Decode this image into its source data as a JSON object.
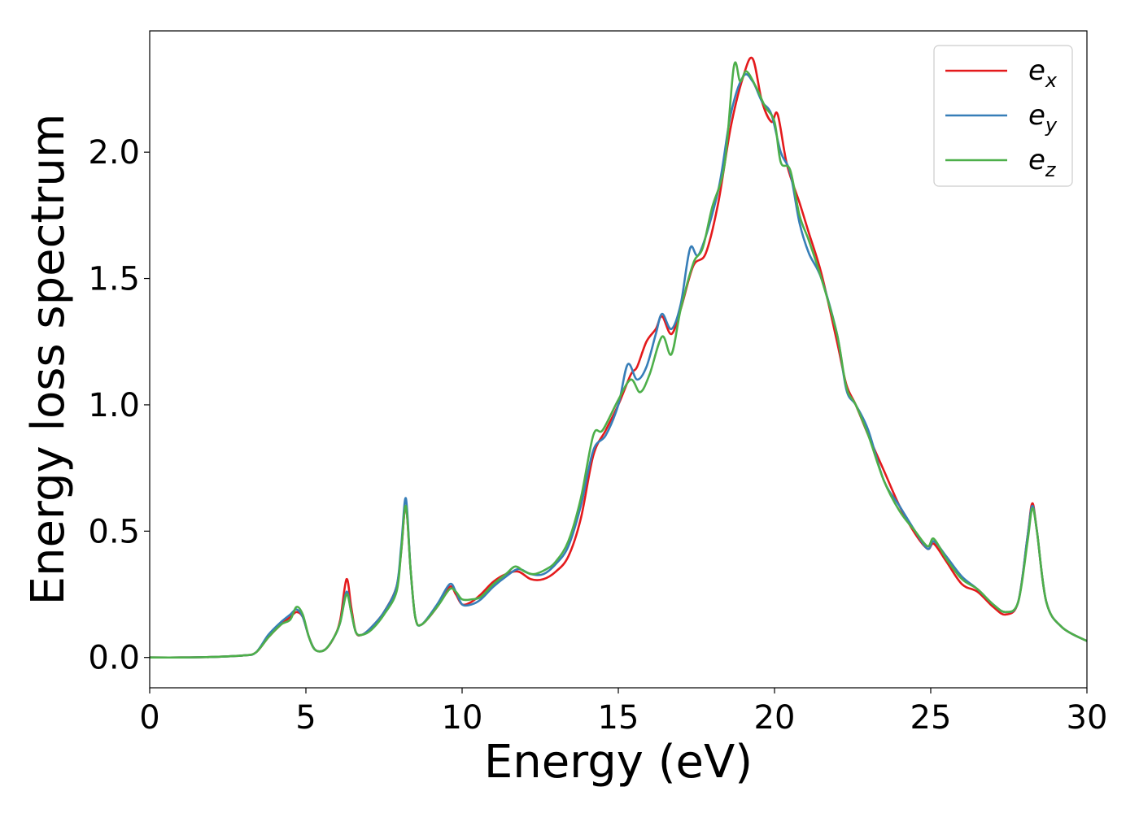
{
  "chart_data": {
    "type": "line",
    "title": "",
    "xlabel": "Energy (eV)",
    "ylabel": "Energy loss spectrum",
    "xlim": [
      0,
      30
    ],
    "ylim": [
      -0.12,
      2.48
    ],
    "xticks": [
      0,
      5,
      10,
      15,
      20,
      25,
      30
    ],
    "xtick_labels": [
      "0",
      "5",
      "10",
      "15",
      "20",
      "25",
      "30"
    ],
    "yticks": [
      0.0,
      0.5,
      1.0,
      1.5,
      2.0
    ],
    "ytick_labels": [
      "0.0",
      "0.5",
      "1.0",
      "1.5",
      "2.0"
    ],
    "grid": false,
    "legend_position": "top-right",
    "series": [
      {
        "name": "e_x",
        "label_base": "e",
        "label_sub": "x",
        "color": "#e41a1c",
        "points": [
          [
            0,
            0
          ],
          [
            1,
            0
          ],
          [
            2,
            0.002
          ],
          [
            3,
            0.008
          ],
          [
            3.4,
            0.02
          ],
          [
            3.8,
            0.08
          ],
          [
            4.2,
            0.13
          ],
          [
            4.5,
            0.16
          ],
          [
            4.7,
            0.18
          ],
          [
            4.9,
            0.16
          ],
          [
            5.1,
            0.08
          ],
          [
            5.3,
            0.03
          ],
          [
            5.6,
            0.03
          ],
          [
            5.9,
            0.08
          ],
          [
            6.1,
            0.15
          ],
          [
            6.3,
            0.31
          ],
          [
            6.45,
            0.2
          ],
          [
            6.6,
            0.1
          ],
          [
            6.8,
            0.09
          ],
          [
            7.1,
            0.12
          ],
          [
            7.5,
            0.18
          ],
          [
            7.9,
            0.28
          ],
          [
            8.05,
            0.42
          ],
          [
            8.2,
            0.6
          ],
          [
            8.35,
            0.35
          ],
          [
            8.5,
            0.16
          ],
          [
            8.7,
            0.13
          ],
          [
            9.2,
            0.2
          ],
          [
            9.6,
            0.28
          ],
          [
            9.8,
            0.25
          ],
          [
            10,
            0.21
          ],
          [
            10.3,
            0.22
          ],
          [
            10.6,
            0.25
          ],
          [
            11,
            0.3
          ],
          [
            11.4,
            0.33
          ],
          [
            11.8,
            0.34
          ],
          [
            12.2,
            0.31
          ],
          [
            12.6,
            0.31
          ],
          [
            13,
            0.34
          ],
          [
            13.4,
            0.4
          ],
          [
            13.8,
            0.55
          ],
          [
            14.2,
            0.8
          ],
          [
            14.6,
            0.9
          ],
          [
            15,
            1.0
          ],
          [
            15.4,
            1.12
          ],
          [
            15.6,
            1.15
          ],
          [
            15.9,
            1.25
          ],
          [
            16.2,
            1.3
          ],
          [
            16.4,
            1.35
          ],
          [
            16.7,
            1.28
          ],
          [
            17.0,
            1.38
          ],
          [
            17.4,
            1.55
          ],
          [
            17.8,
            1.6
          ],
          [
            18.2,
            1.8
          ],
          [
            18.6,
            2.1
          ],
          [
            19.0,
            2.3
          ],
          [
            19.3,
            2.37
          ],
          [
            19.6,
            2.2
          ],
          [
            19.9,
            2.12
          ],
          [
            20.1,
            2.15
          ],
          [
            20.4,
            1.95
          ],
          [
            20.8,
            1.8
          ],
          [
            21.1,
            1.68
          ],
          [
            21.5,
            1.52
          ],
          [
            22.0,
            1.25
          ],
          [
            22.3,
            1.08
          ],
          [
            22.6,
            1.0
          ],
          [
            23.0,
            0.88
          ],
          [
            23.5,
            0.74
          ],
          [
            24,
            0.6
          ],
          [
            24.5,
            0.49
          ],
          [
            24.9,
            0.43
          ],
          [
            25.1,
            0.45
          ],
          [
            25.5,
            0.38
          ],
          [
            26,
            0.29
          ],
          [
            26.5,
            0.26
          ],
          [
            27,
            0.2
          ],
          [
            27.4,
            0.17
          ],
          [
            27.8,
            0.22
          ],
          [
            28.1,
            0.48
          ],
          [
            28.25,
            0.61
          ],
          [
            28.4,
            0.5
          ],
          [
            28.7,
            0.22
          ],
          [
            29.2,
            0.12
          ],
          [
            30,
            0.065
          ]
        ]
      },
      {
        "name": "e_y",
        "label_base": "e",
        "label_sub": "y",
        "color": "#377eb8",
        "points": [
          [
            0,
            0
          ],
          [
            1,
            0
          ],
          [
            2,
            0.002
          ],
          [
            3,
            0.008
          ],
          [
            3.4,
            0.02
          ],
          [
            3.8,
            0.09
          ],
          [
            4.2,
            0.14
          ],
          [
            4.5,
            0.17
          ],
          [
            4.7,
            0.19
          ],
          [
            4.9,
            0.16
          ],
          [
            5.1,
            0.08
          ],
          [
            5.3,
            0.03
          ],
          [
            5.6,
            0.03
          ],
          [
            5.9,
            0.08
          ],
          [
            6.1,
            0.14
          ],
          [
            6.3,
            0.26
          ],
          [
            6.45,
            0.18
          ],
          [
            6.6,
            0.1
          ],
          [
            6.8,
            0.09
          ],
          [
            7.1,
            0.12
          ],
          [
            7.5,
            0.18
          ],
          [
            7.9,
            0.28
          ],
          [
            8.05,
            0.44
          ],
          [
            8.2,
            0.63
          ],
          [
            8.35,
            0.35
          ],
          [
            8.5,
            0.16
          ],
          [
            8.7,
            0.13
          ],
          [
            9.2,
            0.21
          ],
          [
            9.6,
            0.29
          ],
          [
            9.8,
            0.26
          ],
          [
            10,
            0.21
          ],
          [
            10.3,
            0.21
          ],
          [
            10.6,
            0.23
          ],
          [
            11,
            0.28
          ],
          [
            11.4,
            0.32
          ],
          [
            11.8,
            0.35
          ],
          [
            12.2,
            0.33
          ],
          [
            12.6,
            0.33
          ],
          [
            13,
            0.37
          ],
          [
            13.4,
            0.44
          ],
          [
            13.8,
            0.6
          ],
          [
            14.2,
            0.82
          ],
          [
            14.6,
            0.88
          ],
          [
            15,
            1.0
          ],
          [
            15.3,
            1.16
          ],
          [
            15.6,
            1.1
          ],
          [
            15.9,
            1.15
          ],
          [
            16.2,
            1.28
          ],
          [
            16.4,
            1.36
          ],
          [
            16.7,
            1.3
          ],
          [
            17.0,
            1.4
          ],
          [
            17.3,
            1.62
          ],
          [
            17.6,
            1.6
          ],
          [
            18.2,
            1.85
          ],
          [
            18.6,
            2.15
          ],
          [
            19.0,
            2.3
          ],
          [
            19.3,
            2.28
          ],
          [
            19.6,
            2.2
          ],
          [
            19.9,
            2.15
          ],
          [
            20.2,
            2.0
          ],
          [
            20.5,
            1.92
          ],
          [
            20.8,
            1.72
          ],
          [
            21.1,
            1.6
          ],
          [
            21.5,
            1.5
          ],
          [
            22.0,
            1.28
          ],
          [
            22.3,
            1.06
          ],
          [
            22.6,
            1.0
          ],
          [
            23.0,
            0.9
          ],
          [
            23.5,
            0.7
          ],
          [
            24,
            0.6
          ],
          [
            24.5,
            0.5
          ],
          [
            24.9,
            0.43
          ],
          [
            25.1,
            0.46
          ],
          [
            25.5,
            0.4
          ],
          [
            26,
            0.32
          ],
          [
            26.5,
            0.27
          ],
          [
            27,
            0.21
          ],
          [
            27.4,
            0.18
          ],
          [
            27.8,
            0.22
          ],
          [
            28.1,
            0.48
          ],
          [
            28.25,
            0.6
          ],
          [
            28.4,
            0.5
          ],
          [
            28.7,
            0.22
          ],
          [
            29.2,
            0.12
          ],
          [
            30,
            0.065
          ]
        ]
      },
      {
        "name": "e_z",
        "label_base": "e",
        "label_sub": "z",
        "color": "#4daf4a",
        "points": [
          [
            0,
            0
          ],
          [
            1,
            0
          ],
          [
            2,
            0.002
          ],
          [
            3,
            0.008
          ],
          [
            3.4,
            0.02
          ],
          [
            3.8,
            0.08
          ],
          [
            4.2,
            0.13
          ],
          [
            4.5,
            0.15
          ],
          [
            4.7,
            0.2
          ],
          [
            4.9,
            0.17
          ],
          [
            5.1,
            0.08
          ],
          [
            5.3,
            0.03
          ],
          [
            5.6,
            0.03
          ],
          [
            5.9,
            0.08
          ],
          [
            6.1,
            0.14
          ],
          [
            6.3,
            0.25
          ],
          [
            6.45,
            0.18
          ],
          [
            6.6,
            0.1
          ],
          [
            6.8,
            0.09
          ],
          [
            7.1,
            0.11
          ],
          [
            7.5,
            0.17
          ],
          [
            7.9,
            0.26
          ],
          [
            8.05,
            0.42
          ],
          [
            8.2,
            0.6
          ],
          [
            8.35,
            0.35
          ],
          [
            8.5,
            0.16
          ],
          [
            8.7,
            0.13
          ],
          [
            9.2,
            0.2
          ],
          [
            9.6,
            0.27
          ],
          [
            9.8,
            0.26
          ],
          [
            10,
            0.23
          ],
          [
            10.3,
            0.23
          ],
          [
            10.6,
            0.24
          ],
          [
            11,
            0.29
          ],
          [
            11.4,
            0.33
          ],
          [
            11.7,
            0.36
          ],
          [
            12.0,
            0.34
          ],
          [
            12.3,
            0.33
          ],
          [
            12.7,
            0.35
          ],
          [
            13.0,
            0.38
          ],
          [
            13.4,
            0.46
          ],
          [
            13.8,
            0.63
          ],
          [
            14.2,
            0.88
          ],
          [
            14.5,
            0.9
          ],
          [
            15,
            1.02
          ],
          [
            15.4,
            1.1
          ],
          [
            15.7,
            1.05
          ],
          [
            16.0,
            1.12
          ],
          [
            16.4,
            1.27
          ],
          [
            16.7,
            1.2
          ],
          [
            17.0,
            1.38
          ],
          [
            17.4,
            1.56
          ],
          [
            17.7,
            1.62
          ],
          [
            18.0,
            1.78
          ],
          [
            18.4,
            1.95
          ],
          [
            18.7,
            2.34
          ],
          [
            18.9,
            2.28
          ],
          [
            19.1,
            2.32
          ],
          [
            19.4,
            2.26
          ],
          [
            19.7,
            2.18
          ],
          [
            20.0,
            2.12
          ],
          [
            20.2,
            1.96
          ],
          [
            20.5,
            1.93
          ],
          [
            20.8,
            1.75
          ],
          [
            21.1,
            1.65
          ],
          [
            21.5,
            1.5
          ],
          [
            22.0,
            1.28
          ],
          [
            22.3,
            1.07
          ],
          [
            22.6,
            1.0
          ],
          [
            23.0,
            0.88
          ],
          [
            23.5,
            0.7
          ],
          [
            24,
            0.58
          ],
          [
            24.5,
            0.5
          ],
          [
            24.9,
            0.44
          ],
          [
            25.1,
            0.47
          ],
          [
            25.5,
            0.39
          ],
          [
            26,
            0.31
          ],
          [
            26.5,
            0.27
          ],
          [
            27,
            0.21
          ],
          [
            27.4,
            0.18
          ],
          [
            27.8,
            0.22
          ],
          [
            28.1,
            0.46
          ],
          [
            28.25,
            0.59
          ],
          [
            28.4,
            0.5
          ],
          [
            28.7,
            0.22
          ],
          [
            29.2,
            0.12
          ],
          [
            30,
            0.065
          ]
        ]
      }
    ]
  }
}
